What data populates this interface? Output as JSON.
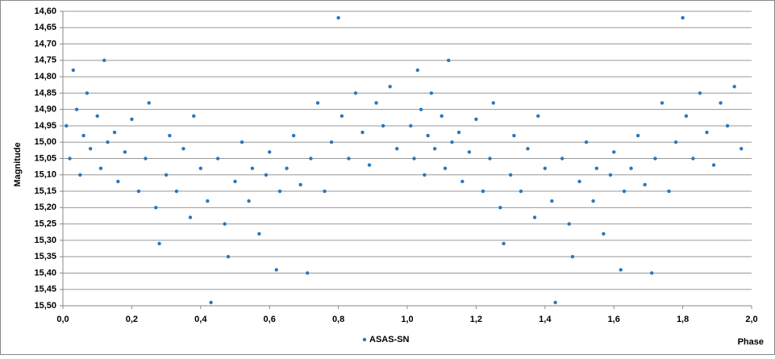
{
  "chart_data": {
    "type": "scatter",
    "y_label": "Magnitude",
    "x_label": "Phase",
    "xlim": [
      0,
      2
    ],
    "ylim": [
      15.5,
      14.6
    ],
    "grid": true,
    "legend": "bottom",
    "xticks": [
      {
        "value": 0,
        "label": "0,0"
      },
      {
        "value": 0.2,
        "label": "0,2"
      },
      {
        "value": 0.4,
        "label": "0,4"
      },
      {
        "value": 0.6,
        "label": "0,6"
      },
      {
        "value": 0.8,
        "label": "0,8"
      },
      {
        "value": 1,
        "label": "1,0"
      },
      {
        "value": 1.2,
        "label": "1,2"
      },
      {
        "value": 1.4,
        "label": "1,4"
      },
      {
        "value": 1.6,
        "label": "1,6"
      },
      {
        "value": 1.8,
        "label": "1,8"
      },
      {
        "value": 2,
        "label": "2,0"
      }
    ],
    "yticks": [
      {
        "value": 14.6,
        "label": "14,60"
      },
      {
        "value": 14.65,
        "label": "14,65"
      },
      {
        "value": 14.7,
        "label": "14,70"
      },
      {
        "value": 14.75,
        "label": "14,75"
      },
      {
        "value": 14.8,
        "label": "14,80"
      },
      {
        "value": 14.85,
        "label": "14,85"
      },
      {
        "value": 14.9,
        "label": "14,90"
      },
      {
        "value": 14.95,
        "label": "14,95"
      },
      {
        "value": 15,
        "label": "15,00"
      },
      {
        "value": 15.05,
        "label": "15,05"
      },
      {
        "value": 15.1,
        "label": "15,10"
      },
      {
        "value": 15.15,
        "label": "15,15"
      },
      {
        "value": 15.2,
        "label": "15,20"
      },
      {
        "value": 15.25,
        "label": "15,25"
      },
      {
        "value": 15.3,
        "label": "15,30"
      },
      {
        "value": 15.35,
        "label": "15,35"
      },
      {
        "value": 15.4,
        "label": "15,40"
      },
      {
        "value": 15.45,
        "label": "15,45"
      },
      {
        "value": 15.5,
        "label": "15,50"
      }
    ],
    "series": [
      {
        "name": "ASAS-SN",
        "color": "#2878bd",
        "x": [
          0.01,
          0.02,
          0.03,
          0.04,
          0.05,
          0.06,
          0.07,
          0.08,
          0.1,
          0.11,
          0.12,
          0.13,
          0.15,
          0.16,
          0.18,
          0.2,
          0.22,
          0.24,
          0.25,
          0.27,
          0.28,
          0.3,
          0.31,
          0.33,
          0.35,
          0.37,
          0.38,
          0.4,
          0.42,
          0.43,
          0.45,
          0.47,
          0.48,
          0.5,
          0.52,
          0.54,
          0.55,
          0.57,
          0.59,
          0.6,
          0.62,
          0.63,
          0.65,
          0.67,
          0.69,
          0.71,
          0.72,
          0.74,
          0.76,
          0.78,
          0.8,
          0.81,
          0.83,
          0.85,
          0.87,
          0.89,
          0.91,
          0.93,
          0.95,
          0.97,
          1.01,
          1.02,
          1.03,
          1.04,
          1.05,
          1.06,
          1.07,
          1.08,
          1.1,
          1.11,
          1.12,
          1.13,
          1.15,
          1.16,
          1.18,
          1.2,
          1.22,
          1.24,
          1.25,
          1.27,
          1.28,
          1.3,
          1.31,
          1.33,
          1.35,
          1.37,
          1.38,
          1.4,
          1.42,
          1.43,
          1.45,
          1.47,
          1.48,
          1.5,
          1.52,
          1.54,
          1.55,
          1.57,
          1.59,
          1.6,
          1.62,
          1.63,
          1.65,
          1.67,
          1.69,
          1.71,
          1.72,
          1.74,
          1.76,
          1.78,
          1.8,
          1.81,
          1.83,
          1.85,
          1.87,
          1.89,
          1.91,
          1.93,
          1.95,
          1.97
        ],
        "values": [
          14.95,
          15.05,
          14.78,
          14.9,
          15.1,
          14.98,
          14.85,
          15.02,
          14.92,
          15.08,
          14.75,
          15.0,
          14.97,
          15.12,
          15.03,
          14.93,
          15.15,
          15.05,
          14.88,
          15.2,
          15.31,
          15.1,
          14.98,
          15.15,
          15.02,
          15.23,
          14.92,
          15.08,
          15.18,
          15.49,
          15.05,
          15.25,
          15.35,
          15.12,
          15.0,
          15.18,
          15.08,
          15.28,
          15.1,
          15.03,
          15.39,
          15.15,
          15.08,
          14.98,
          15.13,
          15.4,
          15.05,
          14.88,
          15.15,
          15.0,
          14.62,
          14.92,
          15.05,
          14.85,
          14.97,
          15.07,
          14.88,
          14.95,
          14.83,
          15.02,
          14.95,
          15.05,
          14.78,
          14.9,
          15.1,
          14.98,
          14.85,
          15.02,
          14.92,
          15.08,
          14.75,
          15.0,
          14.97,
          15.12,
          15.03,
          14.93,
          15.15,
          15.05,
          14.88,
          15.2,
          15.31,
          15.1,
          14.98,
          15.15,
          15.02,
          15.23,
          14.92,
          15.08,
          15.18,
          15.49,
          15.05,
          15.25,
          15.35,
          15.12,
          15.0,
          15.18,
          15.08,
          15.28,
          15.1,
          15.03,
          15.39,
          15.15,
          15.08,
          14.98,
          15.13,
          15.4,
          15.05,
          14.88,
          15.15,
          15.0,
          14.62,
          14.92,
          15.05,
          14.85,
          14.97,
          15.07,
          14.88,
          14.95,
          14.83,
          15.02
        ]
      }
    ]
  }
}
